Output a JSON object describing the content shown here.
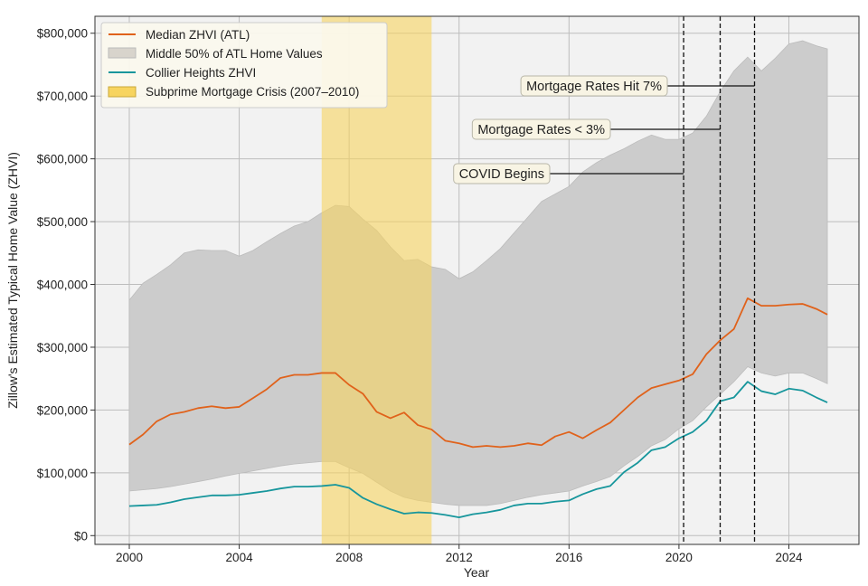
{
  "chart_data": {
    "type": "line",
    "title": "",
    "xlabel": "Year",
    "ylabel": "Zillow's Estimated Typical Home Value (ZHVI)",
    "xlim": [
      1998.75,
      2026.55
    ],
    "ylim": [
      -14000,
      827000
    ],
    "x_ticks": [
      "2000",
      "2004",
      "2008",
      "2012",
      "2016",
      "2020",
      "2024"
    ],
    "y_ticks": [
      "$0",
      "$100,000",
      "$200,000",
      "$300,000",
      "$400,000",
      "$500,000",
      "$600,000",
      "$700,000",
      "$800,000"
    ],
    "grid": true,
    "legend_position": "top-left",
    "x": [
      2000,
      2000.5,
      2001,
      2001.5,
      2002,
      2002.5,
      2003,
      2003.5,
      2004,
      2004.5,
      2005,
      2005.5,
      2006,
      2006.5,
      2007,
      2007.5,
      2008,
      2008.5,
      2009,
      2009.5,
      2010,
      2010.5,
      2011,
      2011.5,
      2012,
      2012.5,
      2013,
      2013.5,
      2014,
      2014.5,
      2015,
      2015.5,
      2016,
      2016.5,
      2017,
      2017.5,
      2018,
      2018.5,
      2019,
      2019.5,
      2020,
      2020.5,
      2021,
      2021.5,
      2022,
      2022.5,
      2023,
      2023.5,
      2024,
      2024.5,
      2025,
      2025.4
    ],
    "series": [
      {
        "name": "Median ZHVI (ATL)",
        "color": "#e0621b",
        "values": [
          145000,
          161000,
          182000,
          193000,
          197000,
          203000,
          206000,
          203000,
          205000,
          219000,
          233000,
          251000,
          256000,
          256000,
          259000,
          259000,
          240000,
          226000,
          197000,
          187000,
          196000,
          176000,
          169000,
          151000,
          147000,
          141000,
          143000,
          141000,
          143000,
          147000,
          144000,
          158000,
          165000,
          155000,
          168000,
          180000,
          200000,
          220000,
          235000,
          241000,
          247000,
          257000,
          289000,
          311000,
          329000,
          378000,
          366000,
          366000,
          368000,
          369000,
          361000,
          352000
        ]
      },
      {
        "name": "Collier Heights ZHVI",
        "color": "#17969c",
        "values": [
          47000,
          48000,
          49000,
          53000,
          58000,
          61000,
          64000,
          64000,
          65000,
          68000,
          71000,
          75000,
          78000,
          78000,
          79000,
          81000,
          76000,
          60000,
          50000,
          42000,
          35000,
          37000,
          36000,
          33000,
          29000,
          34000,
          37000,
          41000,
          48000,
          51000,
          51000,
          54000,
          56000,
          66000,
          74000,
          79000,
          101000,
          116000,
          136000,
          141000,
          155000,
          165000,
          183000,
          214000,
          220000,
          245000,
          230000,
          225000,
          234000,
          231000,
          220000,
          212000
        ]
      }
    ],
    "band": {
      "name": "Middle 50% of ATL Home Values",
      "color": "#cccccc",
      "upper": [
        375000,
        402000,
        416000,
        431000,
        450000,
        455000,
        454000,
        454000,
        445000,
        454000,
        468000,
        481000,
        493000,
        500000,
        514000,
        526000,
        524000,
        504000,
        486000,
        460000,
        438000,
        440000,
        428000,
        424000,
        409000,
        420000,
        438000,
        457000,
        482000,
        507000,
        532000,
        544000,
        556000,
        579000,
        594000,
        606000,
        616000,
        628000,
        638000,
        631000,
        631000,
        641000,
        668000,
        707000,
        740000,
        762000,
        740000,
        760000,
        783000,
        788000,
        780000,
        775000
      ],
      "lower": [
        71000,
        73000,
        75000,
        78000,
        82000,
        86000,
        90000,
        95000,
        99000,
        103000,
        107000,
        111000,
        114000,
        116000,
        118000,
        118000,
        108000,
        99000,
        85000,
        71000,
        61000,
        56000,
        53000,
        50000,
        48000,
        48000,
        48000,
        51000,
        56000,
        61000,
        65000,
        68000,
        71000,
        79000,
        86000,
        94000,
        111000,
        126000,
        143000,
        153000,
        170000,
        183000,
        205000,
        225000,
        245000,
        269000,
        259000,
        254000,
        259000,
        259000,
        250000,
        242000
      ]
    },
    "span": {
      "name": "Subprime Mortgage Crisis (2007–2010)",
      "color": "#f7d45f",
      "start": 2007,
      "end": 2011
    },
    "events": [
      {
        "label": "COVID Begins",
        "x": 2020.17
      },
      {
        "label": "Mortgage Rates < 3%",
        "x": 2021.5
      },
      {
        "label": "Mortgage Rates Hit 7%",
        "x": 2022.75
      }
    ]
  }
}
